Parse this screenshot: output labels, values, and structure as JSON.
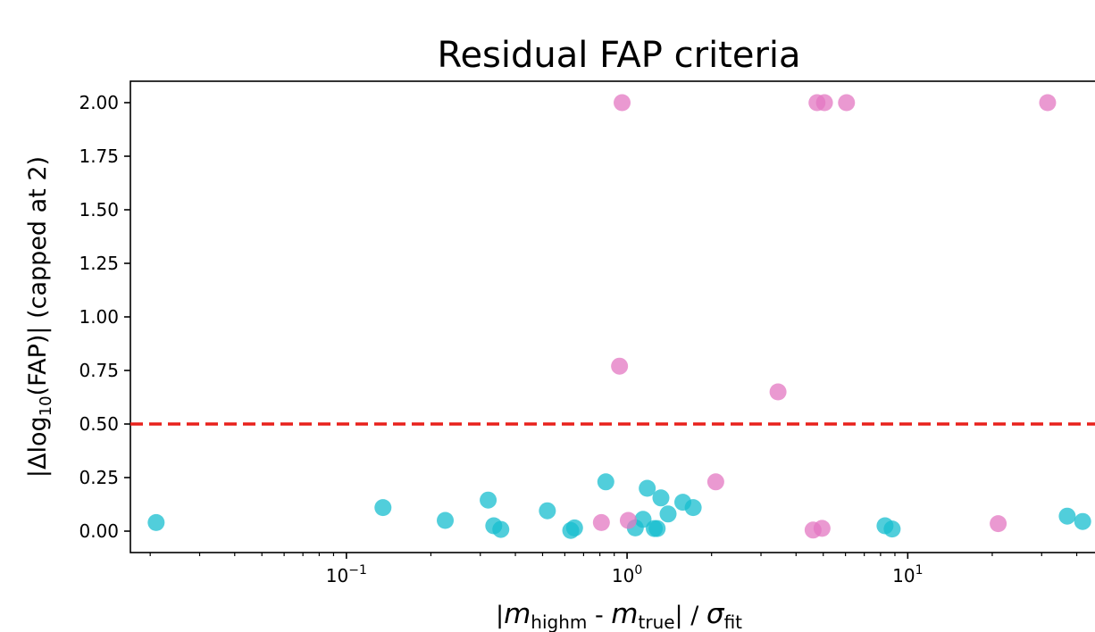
{
  "chart_data": {
    "type": "scatter",
    "title": "Residual FAP criteria",
    "xlabel_parts": {
      "m": "m",
      "sub_highm": "highm",
      "sep": " - ",
      "sub_true": "true",
      "mid": "| / ",
      "sigma": "σ",
      "sub_fit": "fit",
      "open_bar": "|"
    },
    "ylabel_parts": {
      "pre": "|Δlog",
      "sub": "10",
      "post": "(FAP)| (capped at 2)"
    },
    "xscale": "log",
    "xlim": [
      0.017,
      50
    ],
    "ylim": [
      -0.1,
      2.1
    ],
    "x_ticks": [
      {
        "value": 0.1,
        "base": "10",
        "exp": "−1"
      },
      {
        "value": 1,
        "base": "10",
        "exp": "0"
      },
      {
        "value": 10,
        "base": "10",
        "exp": "1"
      }
    ],
    "y_ticks": [
      {
        "value": 0.0,
        "label": "0.00"
      },
      {
        "value": 0.25,
        "label": "0.25"
      },
      {
        "value": 0.5,
        "label": "0.50"
      },
      {
        "value": 0.75,
        "label": "0.75"
      },
      {
        "value": 1.0,
        "label": "1.00"
      },
      {
        "value": 1.25,
        "label": "1.25"
      },
      {
        "value": 1.5,
        "label": "1.50"
      },
      {
        "value": 1.75,
        "label": "1.75"
      },
      {
        "value": 2.0,
        "label": "2.00"
      }
    ],
    "threshold": {
      "y": 0.5,
      "color": "#e8211c",
      "style": "dashed"
    },
    "grid": false,
    "series": [
      {
        "color": "#17becf",
        "points": [
          [
            0.021,
            0.04
          ],
          [
            0.135,
            0.11
          ],
          [
            0.225,
            0.05
          ],
          [
            0.32,
            0.145
          ],
          [
            0.335,
            0.025
          ],
          [
            0.355,
            0.008
          ],
          [
            0.52,
            0.095
          ],
          [
            0.63,
            0.003
          ],
          [
            0.65,
            0.015
          ],
          [
            0.84,
            0.23
          ],
          [
            1.07,
            0.015
          ],
          [
            1.14,
            0.055
          ],
          [
            1.18,
            0.2
          ],
          [
            1.25,
            0.012
          ],
          [
            1.28,
            0.012
          ],
          [
            1.32,
            0.155
          ],
          [
            1.4,
            0.08
          ],
          [
            1.58,
            0.135
          ],
          [
            1.72,
            0.11
          ],
          [
            8.3,
            0.025
          ],
          [
            8.8,
            0.01
          ],
          [
            37.0,
            0.07
          ],
          [
            42.0,
            0.045
          ]
        ]
      },
      {
        "color": "#e377c2",
        "points": [
          [
            0.96,
            2.0
          ],
          [
            4.75,
            2.0
          ],
          [
            5.05,
            2.0
          ],
          [
            6.05,
            2.0
          ],
          [
            31.5,
            2.0
          ],
          [
            0.94,
            0.77
          ],
          [
            3.45,
            0.65
          ],
          [
            2.07,
            0.23
          ],
          [
            0.81,
            0.04
          ],
          [
            1.01,
            0.05
          ],
          [
            4.6,
            0.005
          ],
          [
            4.95,
            0.013
          ],
          [
            21.0,
            0.035
          ]
        ]
      }
    ]
  }
}
